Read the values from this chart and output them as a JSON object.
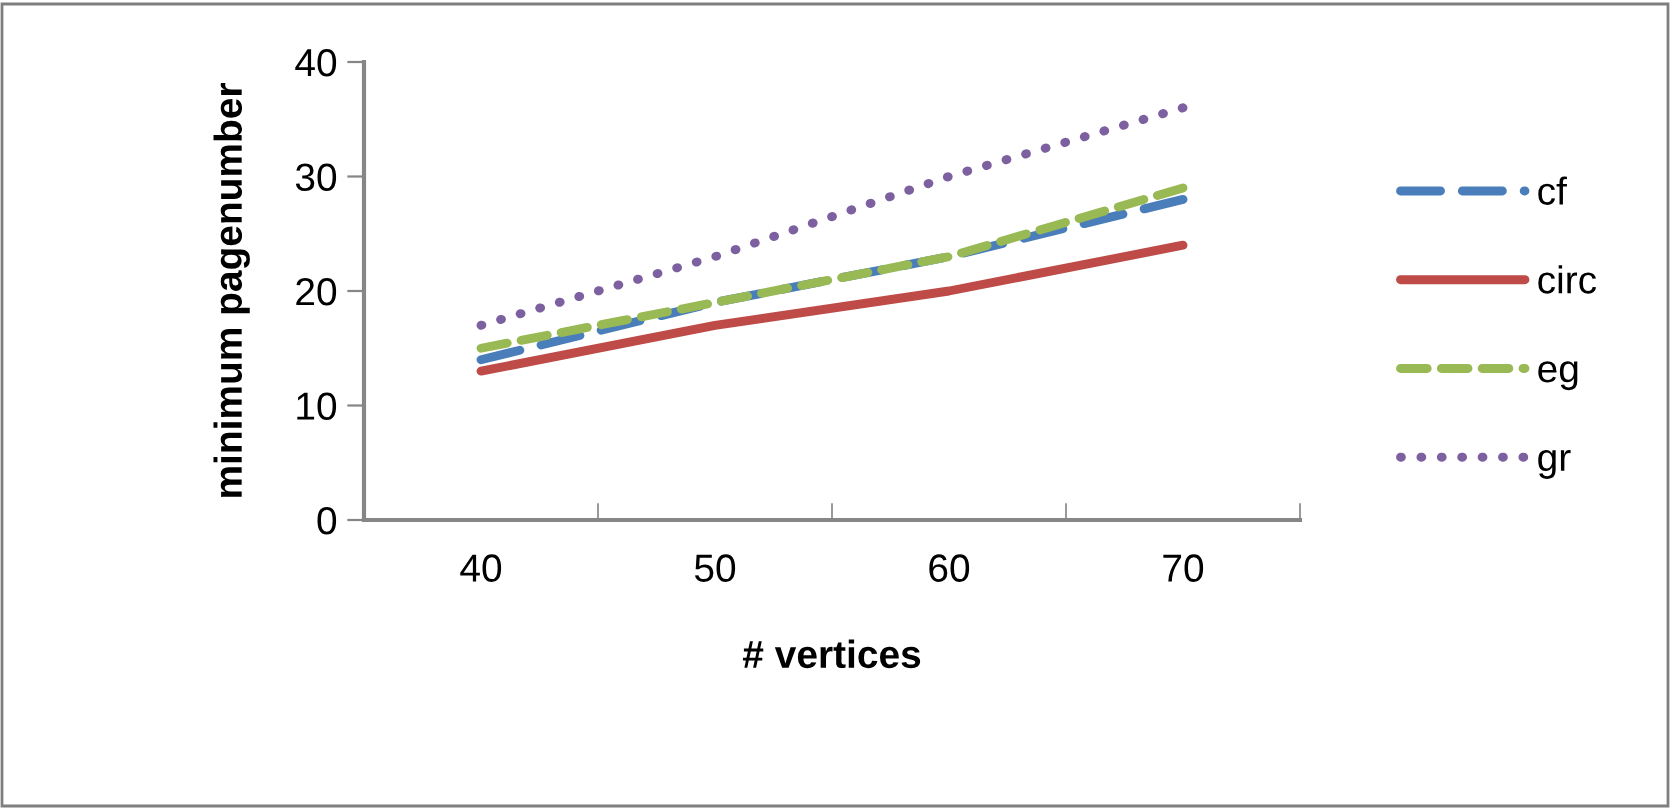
{
  "chart_data": {
    "type": "line",
    "xlabel": "# vertices",
    "ylabel": "minimum pagenumber",
    "categories": [
      "40",
      "50",
      "60",
      "70"
    ],
    "series": [
      {
        "name": "cf",
        "color": "#4a7ebb",
        "line_style": "dashed",
        "values": [
          14,
          19,
          23,
          28
        ]
      },
      {
        "name": "circ",
        "color": "#be4b48",
        "line_style": "solid",
        "values": [
          13,
          17,
          20,
          24
        ]
      },
      {
        "name": "eg",
        "color": "#98b954",
        "line_style": "dashed",
        "values": [
          15,
          19,
          23,
          29
        ]
      },
      {
        "name": "gr",
        "color": "#7d60a0",
        "line_style": "dotted",
        "values": [
          17,
          23,
          30,
          36
        ]
      }
    ],
    "ylim": [
      0,
      40
    ],
    "yticks": [
      0,
      10,
      20,
      30,
      40
    ],
    "grid": false,
    "legend": "right",
    "marker": "none"
  }
}
